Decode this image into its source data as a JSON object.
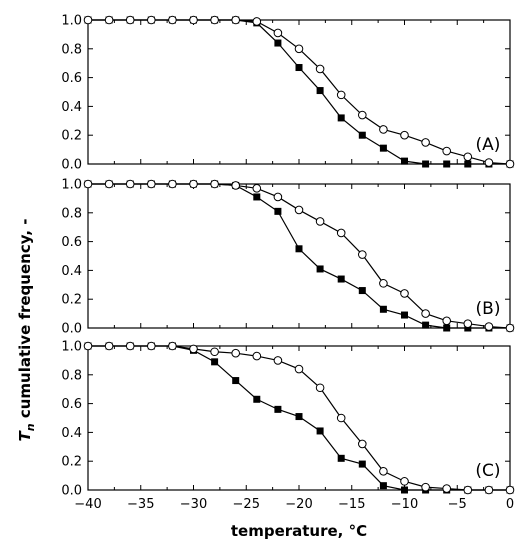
{
  "chart_data": {
    "type": "line",
    "ylabel_main": "T",
    "ylabel_sub": "n",
    "ylabel_rest": " cumulative frequency, -",
    "xlabel": "temperature, °C",
    "xlim": [
      -40,
      0
    ],
    "ylim": [
      0,
      1
    ],
    "xticks": [
      -40,
      -35,
      -30,
      -25,
      -20,
      -15,
      -10,
      -5,
      0
    ],
    "yticks": [
      0.0,
      0.2,
      0.4,
      0.6,
      0.8,
      1.0
    ],
    "ytick_labels": [
      "0.0",
      "0.2",
      "0.4",
      "0.6",
      "0.8",
      "1.0"
    ],
    "series_styles": [
      {
        "marker": "filled-square",
        "color": "#000000"
      },
      {
        "marker": "open-circle",
        "color": "#000000"
      }
    ],
    "panels": [
      {
        "label": "(A)",
        "series": [
          {
            "x": [
              -40,
              -38,
              -36,
              -34,
              -32,
              -30,
              -28,
              -26,
              -24,
              -22,
              -20,
              -18,
              -16,
              -14,
              -12,
              -10,
              -8,
              -6,
              -4,
              -2,
              0
            ],
            "y": [
              1.0,
              1.0,
              1.0,
              1.0,
              1.0,
              1.0,
              1.0,
              1.0,
              0.98,
              0.84,
              0.67,
              0.51,
              0.32,
              0.2,
              0.11,
              0.02,
              0.0,
              0.0,
              0.0,
              0.0,
              0.0
            ]
          },
          {
            "x": [
              -40,
              -38,
              -36,
              -34,
              -32,
              -30,
              -28,
              -26,
              -24,
              -22,
              -20,
              -18,
              -16,
              -14,
              -12,
              -10,
              -8,
              -6,
              -4,
              -2,
              0
            ],
            "y": [
              1.0,
              1.0,
              1.0,
              1.0,
              1.0,
              1.0,
              1.0,
              1.0,
              0.99,
              0.91,
              0.8,
              0.66,
              0.48,
              0.34,
              0.24,
              0.2,
              0.15,
              0.09,
              0.05,
              0.01,
              0.0
            ]
          }
        ]
      },
      {
        "label": "(B)",
        "series": [
          {
            "x": [
              -40,
              -38,
              -36,
              -34,
              -32,
              -30,
              -28,
              -26,
              -24,
              -22,
              -20,
              -18,
              -16,
              -14,
              -12,
              -10,
              -8,
              -6,
              -4,
              -2,
              0
            ],
            "y": [
              1.0,
              1.0,
              1.0,
              1.0,
              1.0,
              1.0,
              1.0,
              0.99,
              0.91,
              0.81,
              0.55,
              0.41,
              0.34,
              0.26,
              0.13,
              0.09,
              0.02,
              0.0,
              0.0,
              0.0,
              0.0
            ]
          },
          {
            "x": [
              -40,
              -38,
              -36,
              -34,
              -32,
              -30,
              -28,
              -26,
              -24,
              -22,
              -20,
              -18,
              -16,
              -14,
              -12,
              -10,
              -8,
              -6,
              -4,
              -2,
              0
            ],
            "y": [
              1.0,
              1.0,
              1.0,
              1.0,
              1.0,
              1.0,
              1.0,
              0.99,
              0.97,
              0.91,
              0.82,
              0.74,
              0.66,
              0.51,
              0.31,
              0.24,
              0.1,
              0.05,
              0.03,
              0.01,
              0.0
            ]
          }
        ]
      },
      {
        "label": "(C)",
        "series": [
          {
            "x": [
              -40,
              -38,
              -36,
              -34,
              -32,
              -30,
              -28,
              -26,
              -24,
              -22,
              -20,
              -18,
              -16,
              -14,
              -12,
              -10,
              -8,
              -6,
              -4,
              -2,
              0
            ],
            "y": [
              1.0,
              1.0,
              1.0,
              1.0,
              1.0,
              0.97,
              0.89,
              0.76,
              0.63,
              0.56,
              0.51,
              0.41,
              0.22,
              0.18,
              0.03,
              0.0,
              0.0,
              0.0,
              0.0,
              0.0,
              0.0
            ]
          },
          {
            "x": [
              -40,
              -38,
              -36,
              -34,
              -32,
              -30,
              -28,
              -26,
              -24,
              -22,
              -20,
              -18,
              -16,
              -14,
              -12,
              -10,
              -8,
              -6,
              -4,
              -2,
              0
            ],
            "y": [
              1.0,
              1.0,
              1.0,
              1.0,
              1.0,
              0.98,
              0.96,
              0.95,
              0.93,
              0.9,
              0.84,
              0.71,
              0.5,
              0.32,
              0.13,
              0.06,
              0.02,
              0.01,
              0.0,
              0.0,
              0.0
            ]
          }
        ]
      }
    ]
  }
}
